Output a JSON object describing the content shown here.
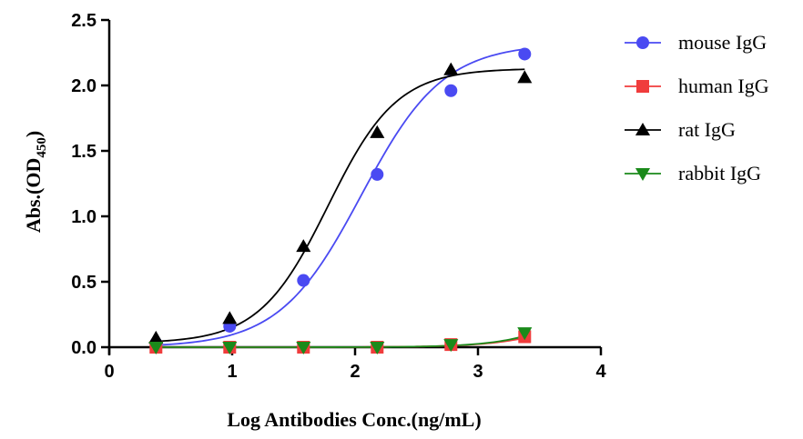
{
  "chart_data": {
    "type": "scatter",
    "xlabel": "Log Antibodies Conc.(ng/mL)",
    "ylabel": {
      "main": "Abs.(OD",
      "subscript": "450",
      "close": ")"
    },
    "xlim": [
      0,
      4
    ],
    "ylim": [
      0,
      2.5
    ],
    "xticks": [
      0,
      1,
      2,
      3,
      4
    ],
    "yticks": [
      "0.0",
      "0.5",
      "1.0",
      "1.5",
      "2.0",
      "2.5"
    ],
    "grid": false,
    "legend_position": "right",
    "x": [
      0.38,
      0.98,
      1.58,
      2.18,
      2.78,
      3.38
    ],
    "series": [
      {
        "name": "mouse IgG",
        "marker": "circle",
        "color": "#4a4af2",
        "values": [
          0.03,
          0.16,
          0.51,
          1.32,
          1.96,
          2.24
        ],
        "fit": {
          "bottom": 0.0,
          "top": 2.32,
          "logec50": 2.05,
          "hill": 1.3
        }
      },
      {
        "name": "human IgG",
        "marker": "square",
        "color": "#f03c3c",
        "values": [
          0.0,
          0.0,
          0.0,
          0.0,
          0.02,
          0.08
        ],
        "fit": {
          "bottom": 0.0,
          "top": 0.6,
          "logec50": 4.0,
          "hill": 1.4
        }
      },
      {
        "name": "rat IgG",
        "marker": "triangle-up",
        "color": "#000000",
        "values": [
          0.07,
          0.22,
          0.77,
          1.64,
          2.12,
          2.06
        ],
        "fit": {
          "bottom": 0.03,
          "top": 2.13,
          "logec50": 1.78,
          "hill": 1.55
        }
      },
      {
        "name": "rabbit IgG",
        "marker": "triangle-down",
        "color": "#1a8a1a",
        "values": [
          0.0,
          0.0,
          0.0,
          0.0,
          0.02,
          0.11
        ],
        "fit": {
          "bottom": 0.0,
          "top": 0.6,
          "logec50": 3.9,
          "hill": 1.5
        }
      }
    ]
  }
}
